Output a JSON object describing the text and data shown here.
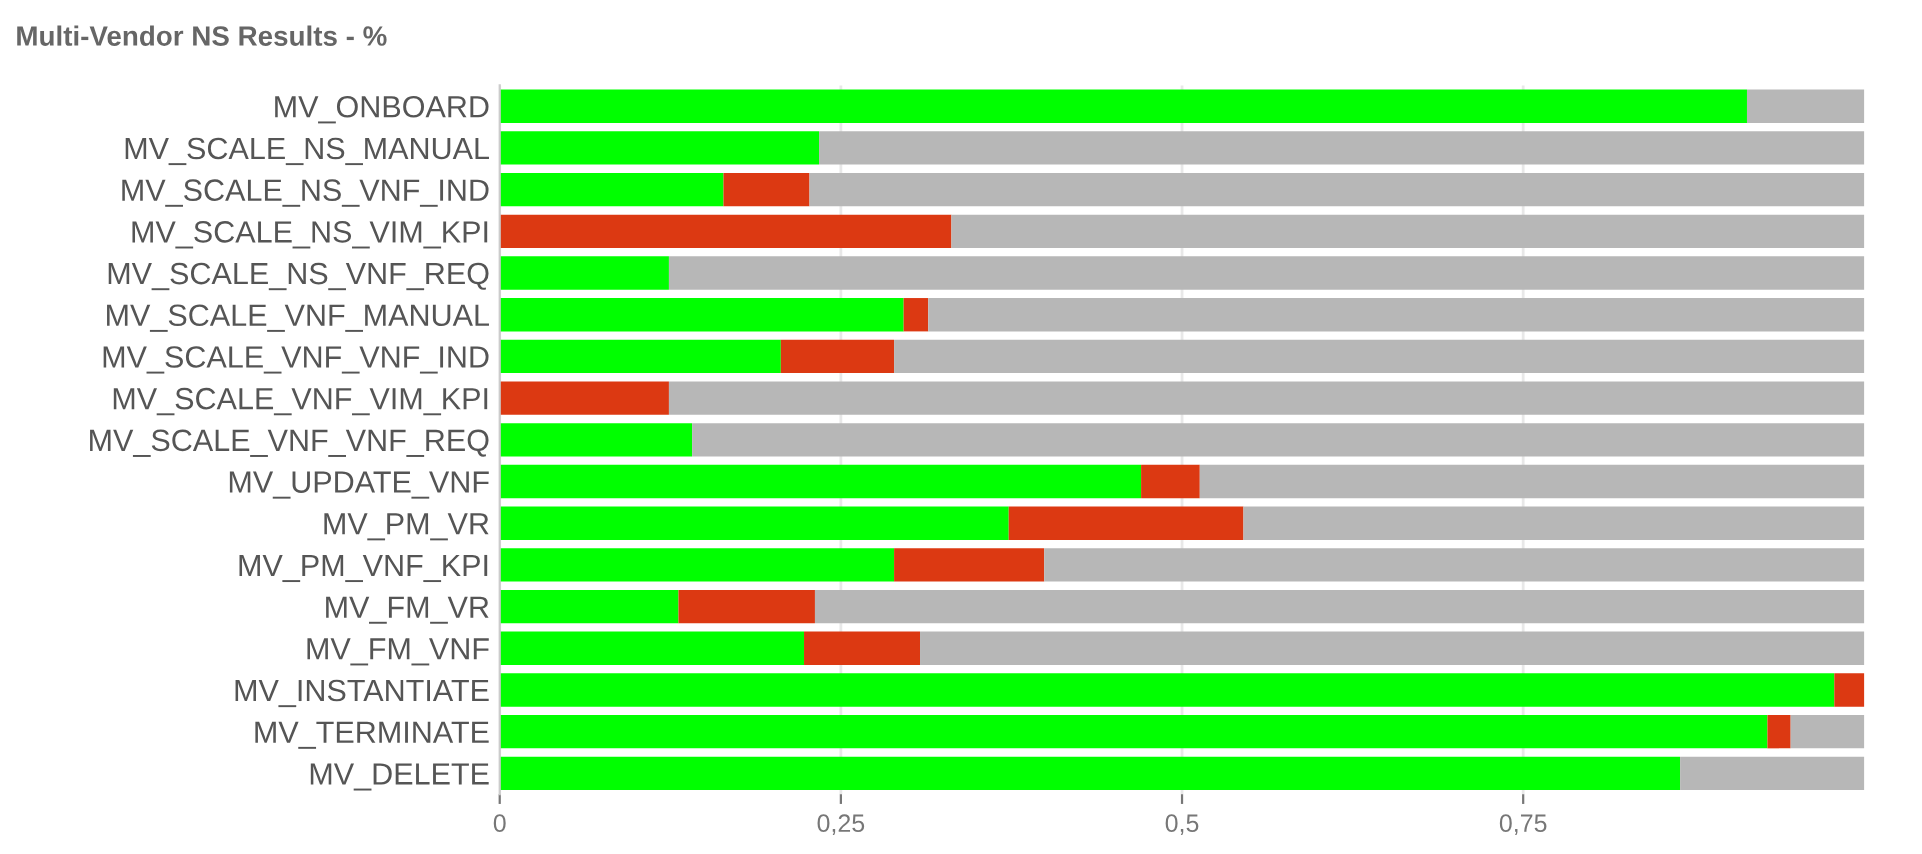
{
  "chart_data": {
    "type": "bar",
    "orientation": "horizontal",
    "stacked": true,
    "title": "Multi-Vendor NS Results - %",
    "categories": [
      "MV_ONBOARD",
      "MV_SCALE_NS_MANUAL",
      "MV_SCALE_NS_VNF_IND",
      "MV_SCALE_NS_VIM_KPI",
      "MV_SCALE_NS_VNF_REQ",
      "MV_SCALE_VNF_MANUAL",
      "MV_SCALE_VNF_VNF_IND",
      "MV_SCALE_VNF_VIM_KPI",
      "MV_SCALE_VNF_VNF_REQ",
      "MV_UPDATE_VNF",
      "MV_PM_VR",
      "MV_PM_VNF_KPI",
      "MV_FM_VR",
      "MV_FM_VNF",
      "MV_INSTANTIATE",
      "MV_TERMINATE",
      "MV_DELETE"
    ],
    "series": [
      {
        "color": "#00ff00",
        "values": [
          0.914,
          0.234,
          0.164,
          0,
          0.124,
          0.296,
          0.206,
          0,
          0.141,
          0.47,
          0.373,
          0.289,
          0.131,
          0.223,
          0.978,
          0.929,
          0.865
        ]
      },
      {
        "color": "#dc3912",
        "values": [
          0,
          0,
          0.063,
          0.331,
          0,
          0.018,
          0.083,
          0.124,
          0,
          0.043,
          0.172,
          0.11,
          0.1,
          0.085,
          0.022,
          0.017,
          0
        ]
      },
      {
        "color": "#b7b7b7",
        "values": [
          0.086,
          0.766,
          0.773,
          0.669,
          0.876,
          0.686,
          0.711,
          0.876,
          0.859,
          0.487,
          0.455,
          0.601,
          0.769,
          0.692,
          0,
          0.054,
          0.135
        ]
      }
    ],
    "xlim": [
      0,
      1
    ],
    "xticks": [
      0,
      {
        "value": 0.25,
        "label": "0,25"
      },
      {
        "value": 0.5,
        "label": "0,5"
      },
      {
        "value": 0.75,
        "label": "0,75"
      }
    ],
    "grid": "x",
    "legend": false
  }
}
